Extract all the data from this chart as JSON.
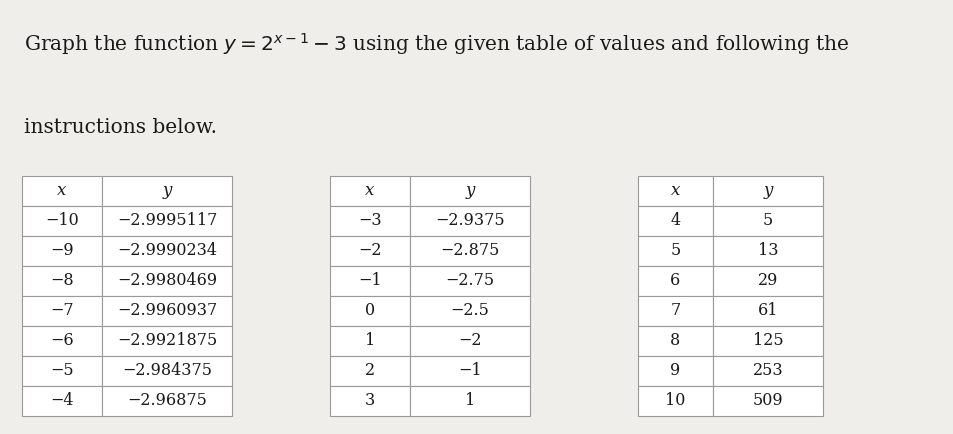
{
  "background_color": "#f0eeeb",
  "title_line1": "Graph the function $y = 2^{x-1} - 3$ using the given table of values and following the",
  "title_line2": "instructions below.",
  "title_fontsize": 14.5,
  "title_color": "#1a1a1a",
  "table1": {
    "headers": [
      "x",
      "y"
    ],
    "rows": [
      [
        "−10",
        "−2.9995117"
      ],
      [
        "−9",
        "−2.9990234"
      ],
      [
        "−8",
        "−2.9980469"
      ],
      [
        "−7",
        "−2.9960937"
      ],
      [
        "−6",
        "−2.9921875"
      ],
      [
        "−5",
        "−2.984375"
      ],
      [
        "−4",
        "−2.96875"
      ]
    ]
  },
  "table2": {
    "headers": [
      "x",
      "y"
    ],
    "rows": [
      [
        "−3",
        "−2.9375"
      ],
      [
        "−2",
        "−2.875"
      ],
      [
        "−1",
        "−2.75"
      ],
      [
        "0",
        "−2.5"
      ],
      [
        "1",
        "−2"
      ],
      [
        "2",
        "−1"
      ],
      [
        "3",
        "1"
      ]
    ]
  },
  "table3": {
    "headers": [
      "x",
      "y"
    ],
    "rows": [
      [
        "4",
        "5"
      ],
      [
        "5",
        "13"
      ],
      [
        "6",
        "29"
      ],
      [
        "7",
        "61"
      ],
      [
        "8",
        "125"
      ],
      [
        "9",
        "253"
      ],
      [
        "10",
        "509"
      ]
    ]
  },
  "cell_bg": "#ffffff",
  "header_bg": "#ffffff",
  "border_color": "#999999",
  "text_color": "#1a1a1a",
  "data_fontsize": 11.5,
  "header_fontsize": 12
}
